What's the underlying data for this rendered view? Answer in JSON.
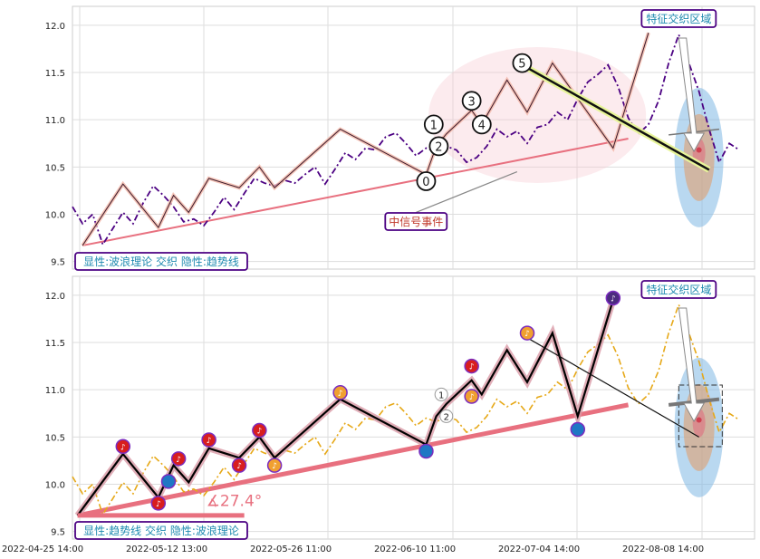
{
  "chart_data": [
    {
      "type": "line",
      "panel": "top",
      "title": "",
      "xlabel": "",
      "ylabel": "",
      "ylim": [
        9.42,
        12.2
      ],
      "yticks": [
        9.5,
        10.0,
        10.5,
        11.0,
        11.5,
        12.0
      ],
      "grid": true,
      "series": [
        {
          "style": "dash-dot",
          "color": "#4b0082",
          "values": [
            [
              0,
              10.08
            ],
            [
              2,
              9.9
            ],
            [
              4,
              10.0
            ],
            [
              6,
              9.68
            ],
            [
              8,
              9.85
            ],
            [
              10,
              10.02
            ],
            [
              12,
              9.9
            ],
            [
              14,
              10.12
            ],
            [
              16,
              10.3
            ],
            [
              18,
              10.2
            ],
            [
              20,
              10.08
            ],
            [
              22,
              9.92
            ],
            [
              24,
              9.95
            ],
            [
              26,
              9.88
            ],
            [
              28,
              10.02
            ],
            [
              30,
              10.18
            ],
            [
              32,
              10.05
            ],
            [
              34,
              10.22
            ],
            [
              36,
              10.38
            ],
            [
              38,
              10.33
            ],
            [
              40,
              10.3
            ],
            [
              42,
              10.36
            ],
            [
              44,
              10.33
            ],
            [
              46,
              10.42
            ],
            [
              48,
              10.5
            ],
            [
              50,
              10.32
            ],
            [
              52,
              10.48
            ],
            [
              54,
              10.65
            ],
            [
              56,
              10.58
            ],
            [
              58,
              10.7
            ],
            [
              60,
              10.68
            ],
            [
              62,
              10.82
            ],
            [
              64,
              10.86
            ],
            [
              66,
              10.75
            ],
            [
              68,
              10.62
            ],
            [
              70,
              10.7
            ],
            [
              72,
              10.66
            ],
            [
              74,
              10.72
            ],
            [
              76,
              10.68
            ],
            [
              78,
              10.55
            ],
            [
              80,
              10.6
            ],
            [
              82,
              10.72
            ],
            [
              84,
              10.9
            ],
            [
              86,
              10.82
            ],
            [
              88,
              10.88
            ],
            [
              90,
              10.75
            ],
            [
              92,
              10.92
            ],
            [
              94,
              10.95
            ],
            [
              96,
              11.08
            ],
            [
              98,
              11.0
            ],
            [
              100,
              11.22
            ],
            [
              102,
              11.4
            ],
            [
              104,
              11.48
            ],
            [
              106,
              11.58
            ],
            [
              108,
              11.35
            ],
            [
              110,
              11.02
            ],
            [
              112,
              10.85
            ],
            [
              114,
              10.95
            ],
            [
              116,
              11.2
            ],
            [
              118,
              11.6
            ],
            [
              120,
              11.9
            ],
            [
              122,
              11.6
            ],
            [
              124,
              11.3
            ],
            [
              126,
              10.9
            ],
            [
              128,
              10.55
            ],
            [
              130,
              10.75
            ],
            [
              132,
              10.68
            ]
          ]
        },
        {
          "style": "solid-thin",
          "color": "#3b1a2a",
          "values": [
            [
              2,
              9.67
            ],
            [
              10,
              10.32
            ],
            [
              17,
              9.86
            ],
            [
              20,
              10.2
            ],
            [
              23,
              10.02
            ],
            [
              27,
              10.38
            ],
            [
              33,
              10.28
            ],
            [
              37,
              10.5
            ],
            [
              40,
              10.28
            ],
            [
              53,
              10.9
            ],
            [
              70,
              10.42
            ],
            [
              72,
              10.72
            ],
            [
              74,
              10.85
            ],
            [
              79,
              11.1
            ],
            [
              81,
              10.95
            ],
            [
              86,
              11.42
            ],
            [
              90,
              11.08
            ],
            [
              95,
              11.6
            ],
            [
              107,
              10.7
            ],
            [
              114,
              11.92
            ]
          ]
        }
      ],
      "trendline": {
        "from": [
          2,
          9.67
        ],
        "to": [
          110,
          10.8
        ]
      },
      "wave_points": [
        {
          "label": "0",
          "x": 70,
          "y": 10.35
        },
        {
          "label": "1",
          "x": 71.5,
          "y": 10.95
        },
        {
          "label": "2",
          "x": 72.5,
          "y": 10.72
        },
        {
          "label": "3",
          "x": 79,
          "y": 11.2
        },
        {
          "label": "4",
          "x": 81,
          "y": 10.95
        },
        {
          "label": "5",
          "x": 89,
          "y": 11.6
        }
      ],
      "annotations": [
        {
          "text": "特征交织区域"
        },
        {
          "text": "中信号事件"
        },
        {
          "text": "显性:波浪理论 交织 隐性:趋势线"
        }
      ]
    },
    {
      "type": "line",
      "panel": "bottom",
      "title": "",
      "xlabel": "",
      "ylabel": "",
      "ylim": [
        9.42,
        12.2
      ],
      "yticks": [
        9.5,
        10.0,
        10.5,
        11.0,
        11.5,
        12.0
      ],
      "grid": true,
      "xticks": [
        "2022-04-25 14:00",
        "2022-05-12 13:00",
        "2022-05-26 11:00",
        "2022-06-10 11:00",
        "2022-07-04 14:00",
        "2022-08-08 14:00"
      ],
      "series": [
        {
          "style": "dash-dot",
          "color": "#e6a817",
          "values": [
            [
              0,
              10.08
            ],
            [
              2,
              9.9
            ],
            [
              4,
              10.0
            ],
            [
              6,
              9.68
            ],
            [
              8,
              9.85
            ],
            [
              10,
              10.02
            ],
            [
              12,
              9.9
            ],
            [
              14,
              10.12
            ],
            [
              16,
              10.3
            ],
            [
              18,
              10.2
            ],
            [
              20,
              10.08
            ],
            [
              22,
              9.92
            ],
            [
              24,
              9.95
            ],
            [
              26,
              9.88
            ],
            [
              28,
              10.02
            ],
            [
              30,
              10.18
            ],
            [
              32,
              10.05
            ],
            [
              34,
              10.22
            ],
            [
              36,
              10.38
            ],
            [
              38,
              10.33
            ],
            [
              40,
              10.3
            ],
            [
              42,
              10.36
            ],
            [
              44,
              10.33
            ],
            [
              46,
              10.42
            ],
            [
              48,
              10.5
            ],
            [
              50,
              10.32
            ],
            [
              52,
              10.48
            ],
            [
              54,
              10.65
            ],
            [
              56,
              10.58
            ],
            [
              58,
              10.7
            ],
            [
              60,
              10.68
            ],
            [
              62,
              10.82
            ],
            [
              64,
              10.86
            ],
            [
              66,
              10.75
            ],
            [
              68,
              10.62
            ],
            [
              70,
              10.7
            ],
            [
              72,
              10.66
            ],
            [
              74,
              10.72
            ],
            [
              76,
              10.68
            ],
            [
              78,
              10.55
            ],
            [
              80,
              10.6
            ],
            [
              82,
              10.72
            ],
            [
              84,
              10.9
            ],
            [
              86,
              10.82
            ],
            [
              88,
              10.88
            ],
            [
              90,
              10.75
            ],
            [
              92,
              10.92
            ],
            [
              94,
              10.95
            ],
            [
              96,
              11.08
            ],
            [
              98,
              11.0
            ],
            [
              100,
              11.22
            ],
            [
              102,
              11.4
            ],
            [
              104,
              11.48
            ],
            [
              106,
              11.58
            ],
            [
              108,
              11.35
            ],
            [
              110,
              11.02
            ],
            [
              112,
              10.85
            ],
            [
              114,
              10.95
            ],
            [
              116,
              11.2
            ],
            [
              118,
              11.6
            ],
            [
              120,
              11.9
            ],
            [
              122,
              11.6
            ],
            [
              124,
              11.3
            ],
            [
              126,
              10.9
            ],
            [
              128,
              10.55
            ],
            [
              130,
              10.75
            ],
            [
              132,
              10.68
            ]
          ]
        },
        {
          "style": "solid-thick",
          "color": "#000000",
          "values": [
            [
              1,
              9.67
            ],
            [
              10,
              10.32
            ],
            [
              17,
              9.86
            ],
            [
              20,
              10.2
            ],
            [
              23,
              10.02
            ],
            [
              27,
              10.38
            ],
            [
              33,
              10.28
            ],
            [
              37,
              10.5
            ],
            [
              40,
              10.28
            ],
            [
              53,
              10.9
            ],
            [
              70,
              10.42
            ],
            [
              72,
              10.72
            ],
            [
              74,
              10.85
            ],
            [
              79,
              11.1
            ],
            [
              81,
              10.95
            ],
            [
              86,
              11.42
            ],
            [
              90,
              11.08
            ],
            [
              95,
              11.6
            ],
            [
              100,
              10.72
            ],
            [
              107,
              11.95
            ]
          ]
        }
      ],
      "trendline": {
        "from": [
          1,
          9.67
        ],
        "to": [
          110,
          10.84
        ]
      },
      "angle_label": "∡27.4°",
      "wave_points": [
        {
          "label": "1",
          "x": 73,
          "y": 10.95
        },
        {
          "label": "2",
          "x": 74,
          "y": 10.72
        }
      ],
      "markers": [
        {
          "kind": "up",
          "x": 10,
          "y": 10.4
        },
        {
          "kind": "up",
          "x": 17,
          "y": 9.8
        },
        {
          "kind": "down",
          "x": 19,
          "y": 10.03
        },
        {
          "kind": "up",
          "x": 21,
          "y": 10.27
        },
        {
          "kind": "up",
          "x": 27,
          "y": 10.47
        },
        {
          "kind": "up",
          "x": 33,
          "y": 10.2
        },
        {
          "kind": "up",
          "x": 37,
          "y": 10.57
        },
        {
          "kind": "mid",
          "x": 40,
          "y": 10.2
        },
        {
          "kind": "mid",
          "x": 53,
          "y": 10.97
        },
        {
          "kind": "down",
          "x": 70,
          "y": 10.35
        },
        {
          "kind": "up",
          "x": 79,
          "y": 11.25
        },
        {
          "kind": "mid",
          "x": 79,
          "y": 10.93
        },
        {
          "kind": "mid",
          "x": 90,
          "y": 11.6
        },
        {
          "kind": "down",
          "x": 100,
          "y": 10.58
        },
        {
          "kind": "top",
          "x": 107,
          "y": 11.97
        }
      ],
      "annotations": [
        {
          "text": "特征交织区域"
        },
        {
          "text": "显性:趋势线 交织 隐性:波浪理论"
        }
      ]
    }
  ]
}
